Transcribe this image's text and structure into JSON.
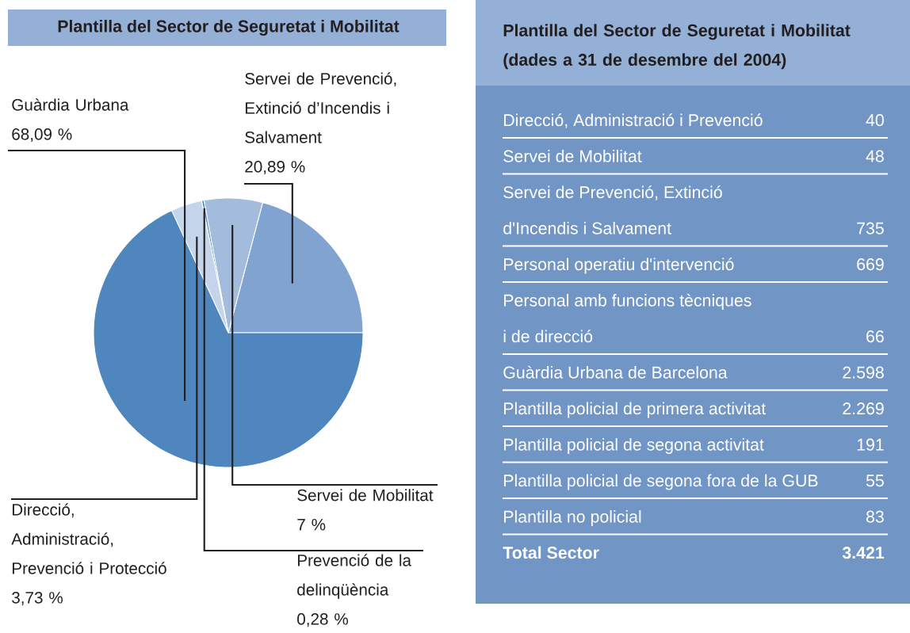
{
  "chart_data": [
    {
      "type": "pie",
      "title": "Plantilla del Sector de Seguretat i Mobilitat",
      "categories": [
        "Servei de Prevenció, Extinció d’Incendis i Salvament",
        "Servei de Mobilitat",
        "Prevenció de la delinqüència",
        "Direcció, Administració, Prevenció i Protecció",
        "Guàrdia Urbana"
      ],
      "values": [
        20.89,
        7,
        0.28,
        3.73,
        68.09
      ],
      "value_labels": [
        "20,89 %",
        "7 %",
        "0,28 %",
        "3,73 %",
        "68,09 %"
      ],
      "colors": [
        "#80a3d0",
        "#a3bcde",
        "#4f86bd",
        "#c3d4eb",
        "#4f86bd"
      ]
    },
    {
      "type": "other",
      "title": "Plantilla del Sector de Seguretat i Mobilitat (dades a 31 de desembre del 2004)",
      "categories": [
        "Direcció, Administració i Prevenció",
        "Servei de Mobilitat",
        "Servei de Prevenció, Extinció d'Incendis i Salvament",
        "Personal operatiu d'intervenció",
        "Personal amb funcions tècniques i de direcció",
        "Guàrdia Urbana de Barcelona",
        "Plantilla policial de primera activitat",
        "Plantilla policial de segona activitat",
        "Plantilla policial de segona fora de la GUB",
        "Plantilla no policial",
        "Total Sector"
      ],
      "values": [
        40,
        48,
        735,
        669,
        66,
        2598,
        2269,
        191,
        55,
        83,
        3421
      ],
      "value_labels": [
        "40",
        "48",
        "735",
        "669",
        "66",
        "2.598",
        "2.269",
        "191",
        "55",
        "83",
        "3.421"
      ]
    }
  ]
}
